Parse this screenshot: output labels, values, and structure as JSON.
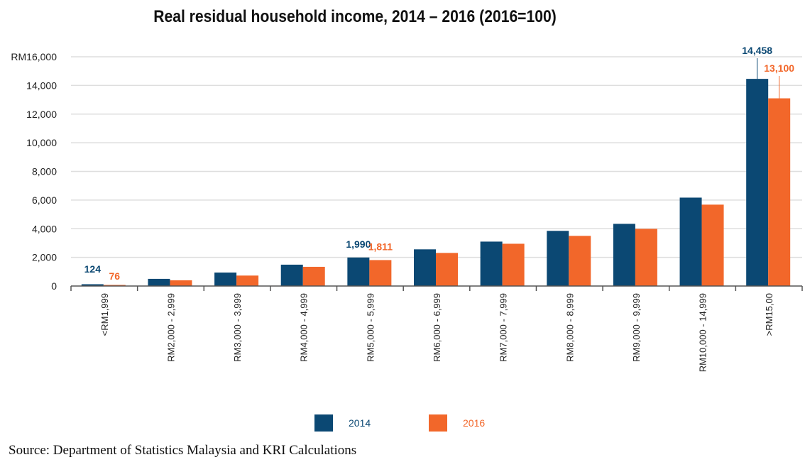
{
  "chart_data": {
    "type": "bar",
    "title": "Real residual household income, 2014 – 2016 (2016=100)",
    "xlabel": "",
    "ylabel": "",
    "ylim": [
      0,
      16000
    ],
    "yticks": [
      "0",
      "2,000",
      "4,000",
      "6,000",
      "8,000",
      "10,000",
      "12,000",
      "14,000",
      "RM16,000"
    ],
    "grid": true,
    "legend_position": "bottom",
    "categories": [
      "<RM1,999",
      "RM2,000 - 2,999",
      "RM3,000 - 3,999",
      "RM4,000 - 4,999",
      "RM5,000 - 5,999",
      "RM6,000 - 6,999",
      "RM7,000 - 7,999",
      "RM8,000 - 8,999",
      "RM9,000 - 9,999",
      "RM10,000 - 14,999",
      ">RM15,00"
    ],
    "series": [
      {
        "name": "2014",
        "color": "#0b4873",
        "values": [
          124,
          500,
          940,
          1490,
          1990,
          2560,
          3100,
          3850,
          4340,
          6170,
          14458
        ]
      },
      {
        "name": "2016",
        "color": "#f2672a",
        "values": [
          76,
          400,
          730,
          1340,
          1811,
          2310,
          2950,
          3500,
          3990,
          5680,
          13100
        ]
      }
    ],
    "data_labels": [
      {
        "series": 0,
        "index": 0,
        "text": "124"
      },
      {
        "series": 1,
        "index": 0,
        "text": "76"
      },
      {
        "series": 0,
        "index": 4,
        "text": "1,990"
      },
      {
        "series": 1,
        "index": 4,
        "text": "1,811"
      },
      {
        "series": 0,
        "index": 10,
        "text": "14,458"
      },
      {
        "series": 1,
        "index": 10,
        "text": "13,100"
      }
    ],
    "source": "Source: Department of Statistics Malaysia and KRI Calculations"
  }
}
